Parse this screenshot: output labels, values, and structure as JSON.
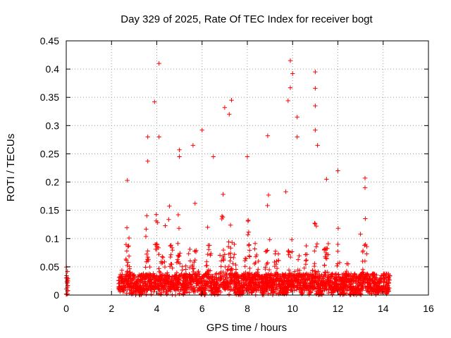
{
  "chart_data": {
    "type": "scatter",
    "title": "Day 329 of 2025, Rate Of TEC Index for receiver bogt",
    "xlabel": "GPS time / hours",
    "ylabel": "ROTI / TECUs",
    "xlim": [
      0,
      16
    ],
    "ylim": [
      0,
      0.45
    ],
    "xticks": [
      "0",
      "2",
      "4",
      "6",
      "8",
      "10",
      "12",
      "14",
      "16"
    ],
    "yticks": [
      "0",
      "0.05",
      "0.1",
      "0.15",
      "0.2",
      "0.25",
      "0.3",
      "0.35",
      "0.4",
      "0.45"
    ],
    "grid": true,
    "marker": "plus",
    "colors": {
      "points": "#ff0000",
      "grid": "#a0a0a0",
      "frame": "#000000"
    },
    "data_ranges": [
      {
        "x": [
          0,
          0.1
        ],
        "y": [
          0,
          0.06
        ]
      },
      {
        "x": [
          2.3,
          14.3
        ],
        "y": [
          0,
          0.42
        ]
      }
    ],
    "notable_points": [
      {
        "x": 3.9,
        "y": 0.342
      },
      {
        "x": 4.1,
        "y": 0.41
      },
      {
        "x": 4.1,
        "y": 0.28
      },
      {
        "x": 3.6,
        "y": 0.28
      },
      {
        "x": 3.6,
        "y": 0.237
      },
      {
        "x": 2.7,
        "y": 0.203
      },
      {
        "x": 5.0,
        "y": 0.257
      },
      {
        "x": 5.0,
        "y": 0.245
      },
      {
        "x": 5.6,
        "y": 0.265
      },
      {
        "x": 6.0,
        "y": 0.292
      },
      {
        "x": 6.5,
        "y": 0.245
      },
      {
        "x": 7.0,
        "y": 0.332
      },
      {
        "x": 7.2,
        "y": 0.32
      },
      {
        "x": 7.3,
        "y": 0.345
      },
      {
        "x": 8.0,
        "y": 0.245
      },
      {
        "x": 8.9,
        "y": 0.282
      },
      {
        "x": 9.9,
        "y": 0.415
      },
      {
        "x": 10.0,
        "y": 0.392
      },
      {
        "x": 9.9,
        "y": 0.367
      },
      {
        "x": 9.8,
        "y": 0.344
      },
      {
        "x": 10.2,
        "y": 0.315
      },
      {
        "x": 10.2,
        "y": 0.28
      },
      {
        "x": 11.0,
        "y": 0.395
      },
      {
        "x": 11.0,
        "y": 0.366
      },
      {
        "x": 11.0,
        "y": 0.335
      },
      {
        "x": 11.0,
        "y": 0.292
      },
      {
        "x": 11.1,
        "y": 0.265
      },
      {
        "x": 11.5,
        "y": 0.205
      },
      {
        "x": 12.0,
        "y": 0.22
      },
      {
        "x": 13.2,
        "y": 0.207
      },
      {
        "x": 13.2,
        "y": 0.19
      },
      {
        "x": 13.0,
        "y": 0.108
      },
      {
        "x": 9.7,
        "y": 0.183
      }
    ]
  }
}
